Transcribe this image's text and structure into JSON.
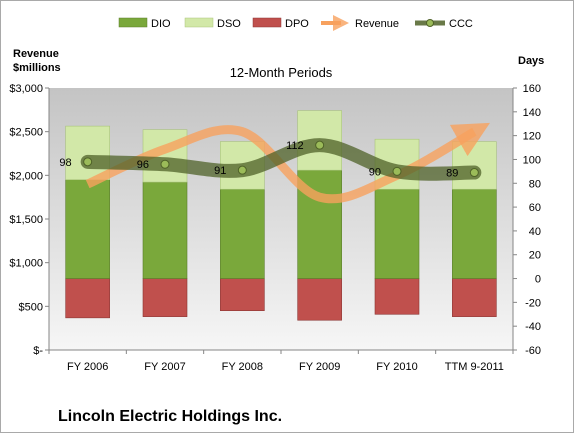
{
  "chart_data": {
    "type": "bar",
    "title": "12-Month Periods",
    "company": "Lincoln Electric Holdings Inc.",
    "categories": [
      "FY 2006",
      "FY 2007",
      "FY 2008",
      "FY 2009",
      "FY 2010",
      "TTM 9-2011"
    ],
    "left_axis": {
      "title_line1": "Revenue",
      "title_line2": "$millions",
      "ylim": [
        0,
        3000
      ],
      "ticks": [
        0,
        500,
        1000,
        1500,
        2000,
        2500,
        3000
      ],
      "tick_labels": [
        "$-",
        "$500",
        "$1,000",
        "$1,500",
        "$2,000",
        "$2,500",
        "$3,000"
      ]
    },
    "right_axis": {
      "title": "Days",
      "ylim": [
        -60,
        160
      ],
      "ticks": [
        -60,
        -40,
        -20,
        0,
        20,
        40,
        60,
        80,
        100,
        120,
        140,
        160
      ],
      "tick_labels": [
        "-60",
        "-40",
        "-20",
        "0",
        "20",
        "40",
        "60",
        "80",
        "100",
        "120",
        "140",
        "160"
      ]
    },
    "series": [
      {
        "name": "DIO",
        "kind": "stacked-bar",
        "axis": "right",
        "values": [
          83,
          81,
          75,
          91,
          75,
          75
        ],
        "color": "#7aa83b"
      },
      {
        "name": "DSO",
        "kind": "stacked-bar",
        "axis": "right",
        "values": [
          45,
          44,
          40,
          50,
          42,
          40
        ],
        "color": "#d2e8a8"
      },
      {
        "name": "DPO",
        "kind": "negative-bar",
        "axis": "right",
        "values": [
          -33,
          -32,
          -27,
          -35,
          -30,
          -32
        ],
        "color": "#c0504d"
      },
      {
        "name": "Revenue",
        "kind": "line",
        "axis": "left",
        "values": [
          1900,
          2300,
          2500,
          1750,
          2000,
          2500
        ],
        "color": "#f7a15e"
      },
      {
        "name": "CCC",
        "kind": "line",
        "axis": "right",
        "values": [
          98,
          96,
          91,
          112,
          90,
          89
        ],
        "color": "#4f6228",
        "labels": [
          "98",
          "96",
          "91",
          "112",
          "90",
          "89"
        ]
      }
    ],
    "legend_position": "top",
    "grid": false
  }
}
